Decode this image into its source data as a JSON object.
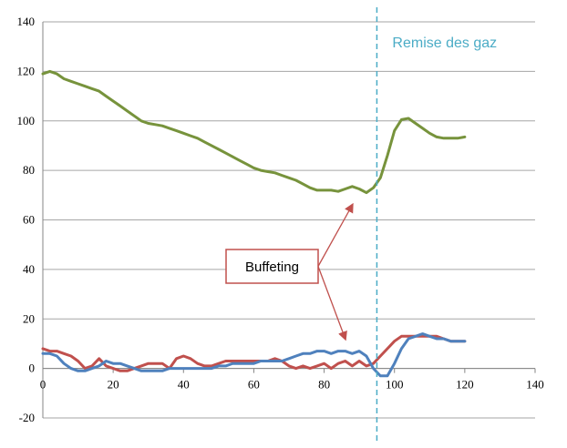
{
  "chart_data": {
    "type": "line",
    "title": "",
    "xlabel": "",
    "ylabel": "",
    "xlim": [
      0,
      140
    ],
    "ylim": [
      -20,
      140
    ],
    "x_ticks": [
      0,
      20,
      40,
      60,
      80,
      100,
      120,
      140
    ],
    "y_ticks": [
      -20,
      0,
      20,
      40,
      60,
      80,
      100,
      120,
      140
    ],
    "grid": "horizontal",
    "legend": "none",
    "vline": {
      "x": 95,
      "label": "Remise des gaz",
      "color": "#4bacc6"
    },
    "callout": {
      "label": "Buffeting",
      "arrow_targets": [
        {
          "x": 88,
          "y": 66
        },
        {
          "x": 86,
          "y": 12
        }
      ]
    },
    "series": [
      {
        "color": "#77933c",
        "x": [
          0,
          2,
          4,
          6,
          8,
          10,
          12,
          14,
          16,
          18,
          20,
          22,
          24,
          26,
          28,
          30,
          32,
          34,
          36,
          38,
          40,
          42,
          44,
          46,
          48,
          50,
          52,
          54,
          56,
          58,
          60,
          62,
          64,
          66,
          68,
          70,
          72,
          74,
          76,
          78,
          80,
          82,
          84,
          86,
          88,
          90,
          92,
          94,
          96,
          98,
          100,
          102,
          104,
          106,
          108,
          110,
          112,
          114,
          116,
          118,
          120
        ],
        "y": [
          119,
          120,
          119,
          117,
          116,
          115,
          114,
          113,
          112,
          110,
          108,
          106,
          104,
          102,
          100,
          99,
          98.5,
          98,
          97,
          96,
          95,
          94,
          93,
          91.5,
          90,
          88.5,
          87,
          85.5,
          84,
          82.5,
          81,
          80,
          79.5,
          79,
          78,
          77,
          76,
          74.5,
          73,
          72,
          72,
          72,
          71.5,
          72.5,
          73.5,
          72.5,
          71,
          73,
          77,
          86,
          96,
          100.5,
          101,
          99,
          97,
          95,
          93.5,
          93,
          93,
          93,
          93.5
        ]
      },
      {
        "color": "#c0504d",
        "x": [
          0,
          2,
          4,
          6,
          8,
          10,
          12,
          14,
          16,
          18,
          20,
          22,
          24,
          26,
          28,
          30,
          32,
          34,
          36,
          38,
          40,
          42,
          44,
          46,
          48,
          50,
          52,
          54,
          56,
          58,
          60,
          62,
          64,
          66,
          68,
          70,
          72,
          74,
          76,
          78,
          80,
          82,
          84,
          86,
          88,
          90,
          92,
          94,
          96,
          98,
          100,
          102,
          104,
          106,
          108,
          110,
          112,
          114,
          116,
          118,
          120
        ],
        "y": [
          8,
          7,
          7,
          6,
          5,
          3,
          0,
          1,
          4,
          1,
          0,
          -1,
          -1,
          0,
          1,
          2,
          2,
          2,
          0,
          4,
          5,
          4,
          2,
          1,
          1,
          2,
          3,
          3,
          3,
          3,
          3,
          3,
          3,
          4,
          3,
          1,
          0,
          1,
          0,
          1,
          2,
          0,
          2,
          3,
          1,
          3,
          1,
          2,
          5,
          8,
          11,
          13,
          13,
          13,
          13,
          13,
          13,
          12,
          11,
          11,
          11
        ]
      },
      {
        "color": "#4f81bd",
        "x": [
          0,
          2,
          4,
          6,
          8,
          10,
          12,
          14,
          16,
          18,
          20,
          22,
          24,
          26,
          28,
          30,
          32,
          34,
          36,
          38,
          40,
          42,
          44,
          46,
          48,
          50,
          52,
          54,
          56,
          58,
          60,
          62,
          64,
          66,
          68,
          70,
          72,
          74,
          76,
          78,
          80,
          82,
          84,
          86,
          88,
          90,
          92,
          94,
          96,
          98,
          100,
          102,
          104,
          106,
          108,
          110,
          112,
          114,
          116,
          118,
          120
        ],
        "y": [
          6,
          6,
          5,
          2,
          0,
          -1,
          -1,
          0,
          1,
          3,
          2,
          2,
          1,
          0,
          -1,
          -1,
          -1,
          -1,
          0,
          0,
          0,
          0,
          0,
          0,
          0,
          1,
          1,
          2,
          2,
          2,
          2,
          3,
          3,
          3,
          3,
          4,
          5,
          6,
          6,
          7,
          7,
          6,
          7,
          7,
          6,
          7,
          5,
          0,
          -3,
          -3,
          2,
          8,
          12,
          13,
          14,
          13,
          12,
          12,
          11,
          11,
          11
        ]
      }
    ]
  }
}
